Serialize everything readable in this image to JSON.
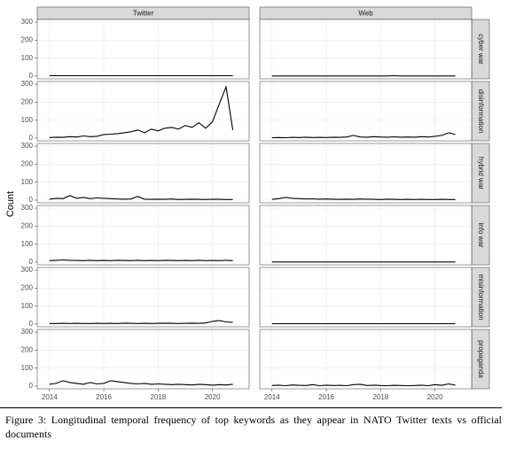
{
  "chart_data": {
    "type": "line",
    "ylabel": "Count",
    "columns": [
      "Twitter",
      "Web"
    ],
    "x": [
      2014,
      2014.25,
      2014.5,
      2014.75,
      2015,
      2015.25,
      2015.5,
      2015.75,
      2016,
      2016.25,
      2016.5,
      2016.75,
      2017,
      2017.25,
      2017.5,
      2017.75,
      2018,
      2018.25,
      2018.5,
      2018.75,
      2019,
      2019.25,
      2019.5,
      2019.75,
      2020,
      2020.25,
      2020.5,
      2020.75
    ],
    "xlim": [
      2013.55,
      2021.35
    ],
    "xticks": [
      2014,
      2016,
      2018,
      2020
    ],
    "ylim": [
      -15,
      315
    ],
    "yticks": [
      0,
      100,
      200,
      300
    ],
    "grid": true,
    "color": "#000000",
    "rows": [
      {
        "name": "cyber war",
        "values": [
          [
            2,
            2,
            2,
            2,
            2,
            2,
            2,
            2,
            2,
            2,
            2,
            2,
            2,
            2,
            2,
            2,
            2,
            2,
            2,
            2,
            2,
            2,
            2,
            2,
            2,
            2,
            2,
            2
          ],
          [
            1,
            1,
            1,
            1,
            1,
            1,
            1,
            1,
            1,
            1,
            1,
            1,
            1,
            1,
            1,
            1,
            1,
            1,
            2,
            1,
            1,
            1,
            1,
            1,
            1,
            1,
            1,
            1
          ]
        ]
      },
      {
        "name": "disinformation",
        "values": [
          [
            3,
            5,
            4,
            8,
            6,
            12,
            8,
            10,
            20,
            22,
            25,
            30,
            35,
            45,
            30,
            50,
            40,
            55,
            60,
            50,
            70,
            60,
            85,
            55,
            90,
            190,
            285,
            45
          ],
          [
            2,
            3,
            2,
            4,
            3,
            5,
            3,
            4,
            3,
            5,
            4,
            6,
            15,
            6,
            5,
            8,
            6,
            5,
            7,
            5,
            6,
            5,
            8,
            6,
            10,
            15,
            30,
            20
          ]
        ]
      },
      {
        "name": "hybrid war",
        "values": [
          [
            5,
            10,
            8,
            25,
            10,
            15,
            8,
            12,
            10,
            8,
            6,
            5,
            6,
            20,
            5,
            4,
            5,
            4,
            6,
            3,
            4,
            5,
            4,
            3,
            5,
            4,
            3,
            3
          ],
          [
            4,
            8,
            15,
            10,
            8,
            6,
            7,
            5,
            6,
            5,
            4,
            5,
            4,
            6,
            5,
            4,
            3,
            5,
            4,
            3,
            4,
            3,
            4,
            3,
            3,
            4,
            3,
            3
          ]
        ]
      },
      {
        "name": "info war",
        "values": [
          [
            8,
            10,
            12,
            10,
            9,
            8,
            10,
            8,
            9,
            8,
            10,
            9,
            8,
            10,
            8,
            9,
            8,
            10,
            9,
            8,
            9,
            8,
            10,
            8,
            9,
            8,
            10,
            8
          ],
          [
            1,
            1,
            1,
            1,
            1,
            1,
            1,
            1,
            1,
            1,
            1,
            1,
            1,
            1,
            1,
            1,
            1,
            1,
            1,
            1,
            1,
            1,
            1,
            1,
            1,
            1,
            1,
            1
          ]
        ]
      },
      {
        "name": "misinformation",
        "values": [
          [
            3,
            3,
            4,
            3,
            4,
            3,
            3,
            4,
            3,
            4,
            3,
            5,
            4,
            3,
            4,
            3,
            4,
            5,
            4,
            3,
            4,
            5,
            4,
            6,
            15,
            20,
            12,
            10
          ],
          [
            2,
            2,
            2,
            2,
            2,
            2,
            2,
            2,
            2,
            2,
            2,
            2,
            2,
            2,
            2,
            2,
            2,
            2,
            2,
            2,
            2,
            2,
            2,
            2,
            2,
            2,
            2,
            2
          ]
        ]
      },
      {
        "name": "propaganda",
        "values": [
          [
            10,
            15,
            30,
            20,
            15,
            10,
            20,
            12,
            15,
            30,
            25,
            20,
            15,
            12,
            15,
            10,
            12,
            10,
            8,
            10,
            8,
            6,
            10,
            8,
            5,
            8,
            6,
            10
          ],
          [
            3,
            5,
            2,
            6,
            4,
            3,
            8,
            2,
            5,
            3,
            4,
            2,
            8,
            10,
            3,
            5,
            3,
            2,
            4,
            3,
            2,
            3,
            5,
            2,
            8,
            4,
            12,
            5
          ]
        ]
      }
    ]
  },
  "caption": "Figure 3: Longitudinal temporal frequency of top keywords as they appear in NATO Twitter texts vs official documents"
}
